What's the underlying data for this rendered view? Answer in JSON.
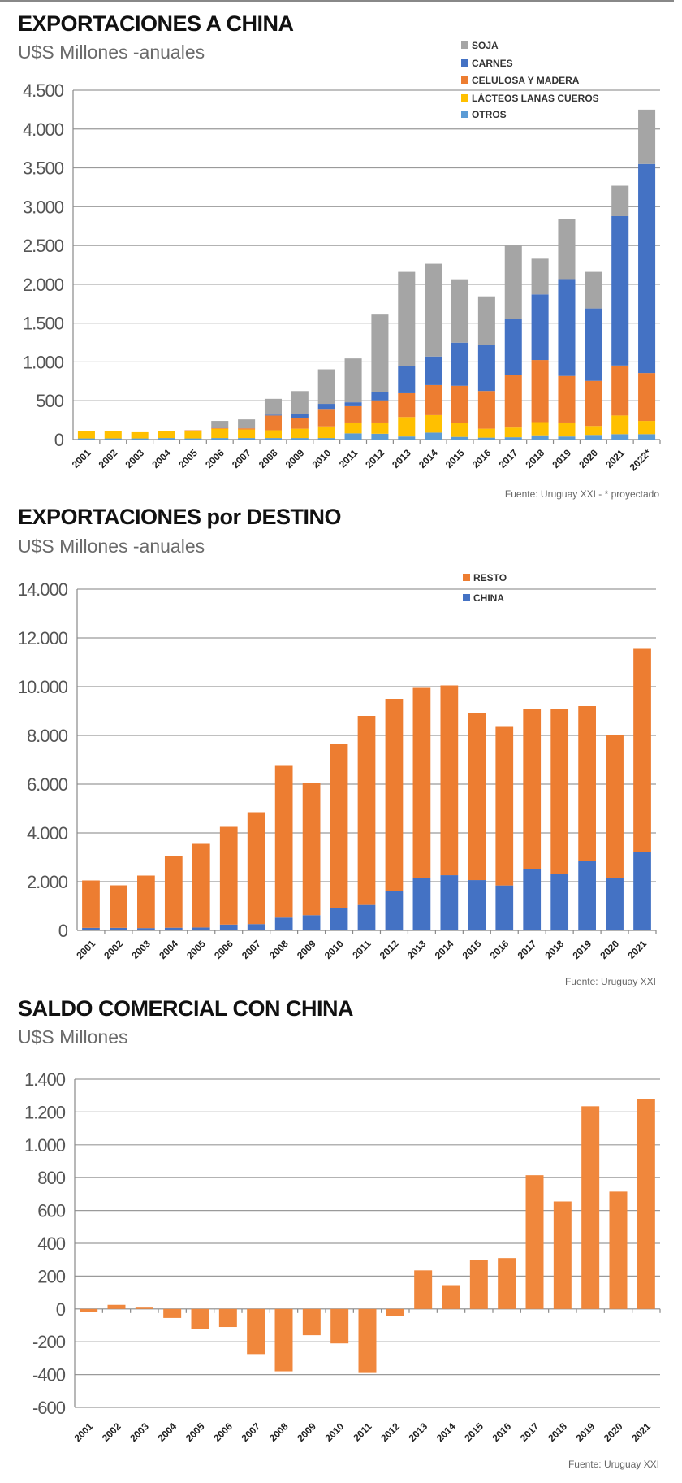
{
  "chart_data": [
    {
      "type": "bar",
      "stacked": true,
      "title": "EXPORTACIONES A CHINA",
      "subtitle": "U$S Millones -anuales",
      "source": "Fuente: Uruguay XXI - * proyectado",
      "categories": [
        "2001",
        "2002",
        "2003",
        "2004",
        "2005",
        "2006",
        "2007",
        "2008",
        "2009",
        "2010",
        "2011",
        "2012",
        "2013",
        "2014",
        "2015",
        "2016",
        "2017",
        "2018",
        "2019",
        "2020",
        "2021",
        "2022*"
      ],
      "ylim": [
        0,
        4500
      ],
      "yticks": [
        0,
        500,
        1000,
        1500,
        2000,
        2500,
        3000,
        3500,
        4000,
        4500
      ],
      "ytick_labels": [
        "0",
        "500",
        "1.000",
        "1.500",
        "2.000",
        "2.500",
        "3.000",
        "3.500",
        "4.000",
        "4.500"
      ],
      "grid": true,
      "legend_position": "top-right",
      "legend_order": [
        "SOJA",
        "CARNES",
        "CELULOSA Y MADERA",
        "LÁCTEOS LANAS CUEROS",
        "OTROS"
      ],
      "series": [
        {
          "name": "OTROS",
          "color": "#5b9bd5",
          "values": [
            15,
            15,
            15,
            20,
            15,
            20,
            20,
            20,
            20,
            20,
            80,
            75,
            40,
            90,
            35,
            25,
            30,
            55,
            40,
            60,
            70,
            70
          ]
        },
        {
          "name": "LÁCTEOS LANAS CUEROS",
          "color": "#ffc000",
          "values": [
            90,
            90,
            80,
            90,
            95,
            120,
            110,
            100,
            120,
            150,
            140,
            145,
            250,
            225,
            175,
            115,
            125,
            170,
            180,
            115,
            240,
            170
          ]
        },
        {
          "name": "CELULOSA Y MADERA",
          "color": "#ed7d31",
          "values": [
            0,
            0,
            0,
            0,
            10,
            10,
            15,
            190,
            140,
            225,
            210,
            285,
            307,
            387,
            483,
            486,
            681,
            800,
            599,
            581,
            644,
            617
          ]
        },
        {
          "name": "CARNES",
          "color": "#4472c4",
          "values": [
            0,
            0,
            0,
            0,
            0,
            5,
            0,
            10,
            45,
            65,
            50,
            105,
            348,
            368,
            555,
            588,
            714,
            845,
            1248,
            933,
            1924,
            2693
          ]
        },
        {
          "name": "SOJA",
          "color": "#a5a5a5",
          "values": [
            0,
            0,
            0,
            0,
            0,
            85,
            115,
            205,
            300,
            445,
            565,
            1000,
            1215,
            1195,
            817,
            631,
            960,
            460,
            773,
            471,
            392,
            700
          ]
        }
      ]
    },
    {
      "type": "bar",
      "stacked": true,
      "title": "EXPORTACIONES por DESTINO",
      "subtitle": "U$S Millones -anuales",
      "source": "Fuente: Uruguay XXI",
      "categories": [
        "2001",
        "2002",
        "2003",
        "2004",
        "2005",
        "2006",
        "2007",
        "2008",
        "2009",
        "2010",
        "2011",
        "2012",
        "2013",
        "2014",
        "2015",
        "2016",
        "2017",
        "2018",
        "2019",
        "2020",
        "2021"
      ],
      "ylim": [
        0,
        14000
      ],
      "yticks": [
        0,
        2000,
        4000,
        6000,
        8000,
        10000,
        12000,
        14000
      ],
      "ytick_labels": [
        "0",
        "2.000",
        "4.000",
        "6.000",
        "8.000",
        "10.000",
        "12.000",
        "14.000"
      ],
      "grid": true,
      "legend_position": "top-right",
      "legend_order": [
        "RESTO",
        "CHINA"
      ],
      "series": [
        {
          "name": "CHINA",
          "color": "#4472c4",
          "values": [
            105,
            105,
            95,
            110,
            120,
            240,
            260,
            525,
            625,
            905,
            1045,
            1610,
            2160,
            2265,
            2065,
            1845,
            2510,
            2330,
            2840,
            2160,
            3200
          ]
        },
        {
          "name": "RESTO",
          "color": "#ed7d31",
          "values": [
            1945,
            1745,
            2155,
            2940,
            3430,
            4010,
            4590,
            6225,
            5425,
            6745,
            7755,
            7890,
            7790,
            7785,
            6835,
            6505,
            6590,
            6770,
            6360,
            5840,
            8350
          ]
        }
      ]
    },
    {
      "type": "bar",
      "title": "SALDO COMERCIAL CON CHINA",
      "subtitle": "U$S Millones",
      "source": "Fuente: Uruguay XXI",
      "categories": [
        "2001",
        "2002",
        "2003",
        "2004",
        "2005",
        "2006",
        "2007",
        "2008",
        "2009",
        "2010",
        "2011",
        "2012",
        "2013",
        "2014",
        "2015",
        "2016",
        "2017",
        "2018",
        "2019",
        "2020",
        "2021"
      ],
      "ylim": [
        -600,
        1400
      ],
      "yticks": [
        -600,
        -400,
        -200,
        0,
        200,
        400,
        600,
        800,
        1000,
        1200,
        1400
      ],
      "ytick_labels": [
        "-600",
        "-400",
        "-200",
        "0",
        "200",
        "400",
        "600",
        "800",
        "1.000",
        "1.200",
        "1.400"
      ],
      "grid": true,
      "color": "#f0873c",
      "values": [
        -20,
        25,
        8,
        -55,
        -120,
        -110,
        -275,
        -380,
        -160,
        -210,
        -390,
        -45,
        235,
        145,
        300,
        310,
        815,
        655,
        1235,
        715,
        1280
      ]
    }
  ]
}
